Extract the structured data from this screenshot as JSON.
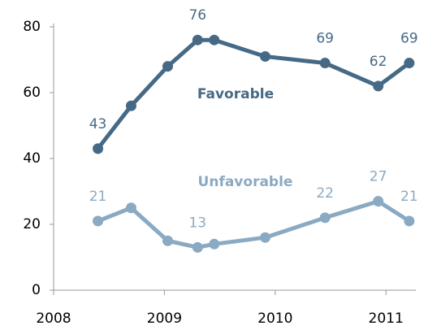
{
  "chart_data": {
    "type": "line",
    "x": [
      2008.4,
      2008.7,
      2009.03,
      2009.3,
      2009.45,
      2009.91,
      2010.45,
      2010.93,
      2011.21
    ],
    "series": [
      {
        "name": "Favorable",
        "color": "#466a86",
        "values": [
          43,
          56,
          68,
          76,
          76,
          71,
          69,
          62,
          69
        ],
        "value_labels": [
          "43",
          null,
          null,
          "76",
          null,
          null,
          "69",
          "62",
          "69"
        ]
      },
      {
        "name": "Unfavorable",
        "color": "#8aaac3",
        "values": [
          21,
          25,
          15,
          13,
          14,
          16,
          22,
          27,
          21
        ],
        "value_labels": [
          "21",
          null,
          null,
          "13",
          null,
          null,
          "22",
          "27",
          "21"
        ]
      }
    ],
    "xlim": [
      2008,
      2011.27
    ],
    "xticks": [
      2008,
      2009,
      2010,
      2011
    ],
    "ylim": [
      0,
      80
    ],
    "yticks": [
      0,
      20,
      40,
      60,
      80
    ],
    "grid": false
  }
}
